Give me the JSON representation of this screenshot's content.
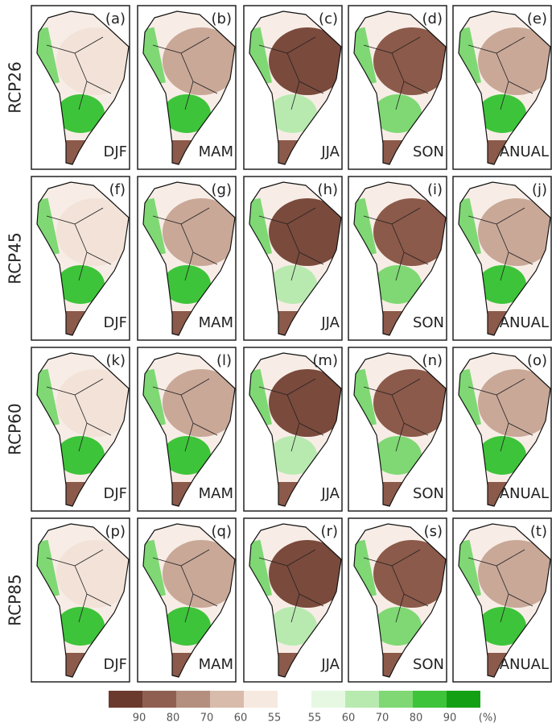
{
  "rows": [
    {
      "label": "RCP26",
      "panels": [
        {
          "letter": "(a)",
          "season": "DJF"
        },
        {
          "letter": "(b)",
          "season": "MAM"
        },
        {
          "letter": "(c)",
          "season": "JJA"
        },
        {
          "letter": "(d)",
          "season": "SON"
        },
        {
          "letter": "(e)",
          "season": "ANUAL"
        }
      ]
    },
    {
      "label": "RCP45",
      "panels": [
        {
          "letter": "(f)",
          "season": "DJF"
        },
        {
          "letter": "(g)",
          "season": "MAM"
        },
        {
          "letter": "(h)",
          "season": "JJA"
        },
        {
          "letter": "(i)",
          "season": "SON"
        },
        {
          "letter": "(j)",
          "season": "ANUAL"
        }
      ]
    },
    {
      "label": "RCP60",
      "panels": [
        {
          "letter": "(k)",
          "season": "DJF"
        },
        {
          "letter": "(l)",
          "season": "MAM"
        },
        {
          "letter": "(m)",
          "season": "JJA"
        },
        {
          "letter": "(n)",
          "season": "SON"
        },
        {
          "letter": "(o)",
          "season": "ANUAL"
        }
      ]
    },
    {
      "label": "RCP85",
      "panels": [
        {
          "letter": "(p)",
          "season": "DJF"
        },
        {
          "letter": "(q)",
          "season": "MAM"
        },
        {
          "letter": "(r)",
          "season": "JJA"
        },
        {
          "letter": "(s)",
          "season": "SON"
        },
        {
          "letter": "(t)",
          "season": "ANUAL"
        }
      ]
    }
  ],
  "colorbar": {
    "dry_labels": [
      "90",
      "80",
      "70",
      "60",
      "55"
    ],
    "wet_labels": [
      "55",
      "60",
      "70",
      "80",
      "90"
    ],
    "unit": "(%)"
  }
}
